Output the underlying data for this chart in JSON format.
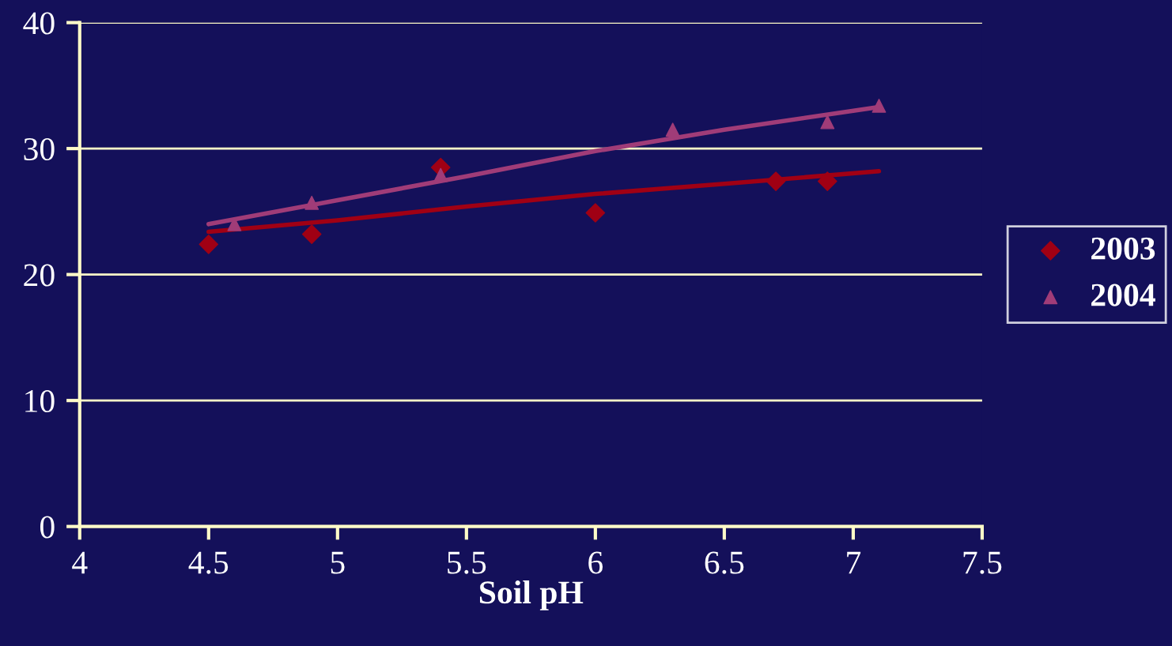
{
  "chart_data": {
    "type": "scatter",
    "xlabel": "Soil pH",
    "xlim": [
      4,
      7.5
    ],
    "xticks": [
      4,
      4.5,
      5,
      5.5,
      6,
      6.5,
      7,
      7.5
    ],
    "ylim": [
      0,
      40
    ],
    "yticks": [
      0,
      10,
      20,
      30,
      40
    ],
    "grid": "y",
    "legend": "right",
    "series": [
      {
        "name": "2003",
        "color": "#a00014",
        "marker": "diamond",
        "x": [
          4.5,
          4.9,
          5.4,
          6.0,
          6.7,
          6.9
        ],
        "values": [
          22.4,
          23.2,
          28.5,
          24.9,
          27.4,
          27.4
        ]
      },
      {
        "name": "2004",
        "color": "#a03c78",
        "marker": "triangle",
        "x": [
          4.6,
          4.9,
          5.4,
          6.3,
          6.9,
          7.1
        ],
        "values": [
          24.0,
          25.7,
          27.9,
          31.5,
          32.1,
          33.4
        ]
      },
      {
        "type": "line",
        "color": "#a00014",
        "marker": "none",
        "x": [
          4.5,
          5.0,
          5.5,
          6.0,
          6.5,
          7.1
        ],
        "values": [
          23.4,
          24.3,
          25.4,
          26.4,
          27.2,
          28.2
        ]
      },
      {
        "type": "line",
        "color": "#a03c78",
        "marker": "none",
        "x": [
          4.5,
          5.0,
          5.5,
          6.0,
          6.5,
          7.1
        ],
        "values": [
          24.0,
          25.9,
          27.8,
          29.8,
          31.5,
          33.3
        ]
      }
    ]
  }
}
